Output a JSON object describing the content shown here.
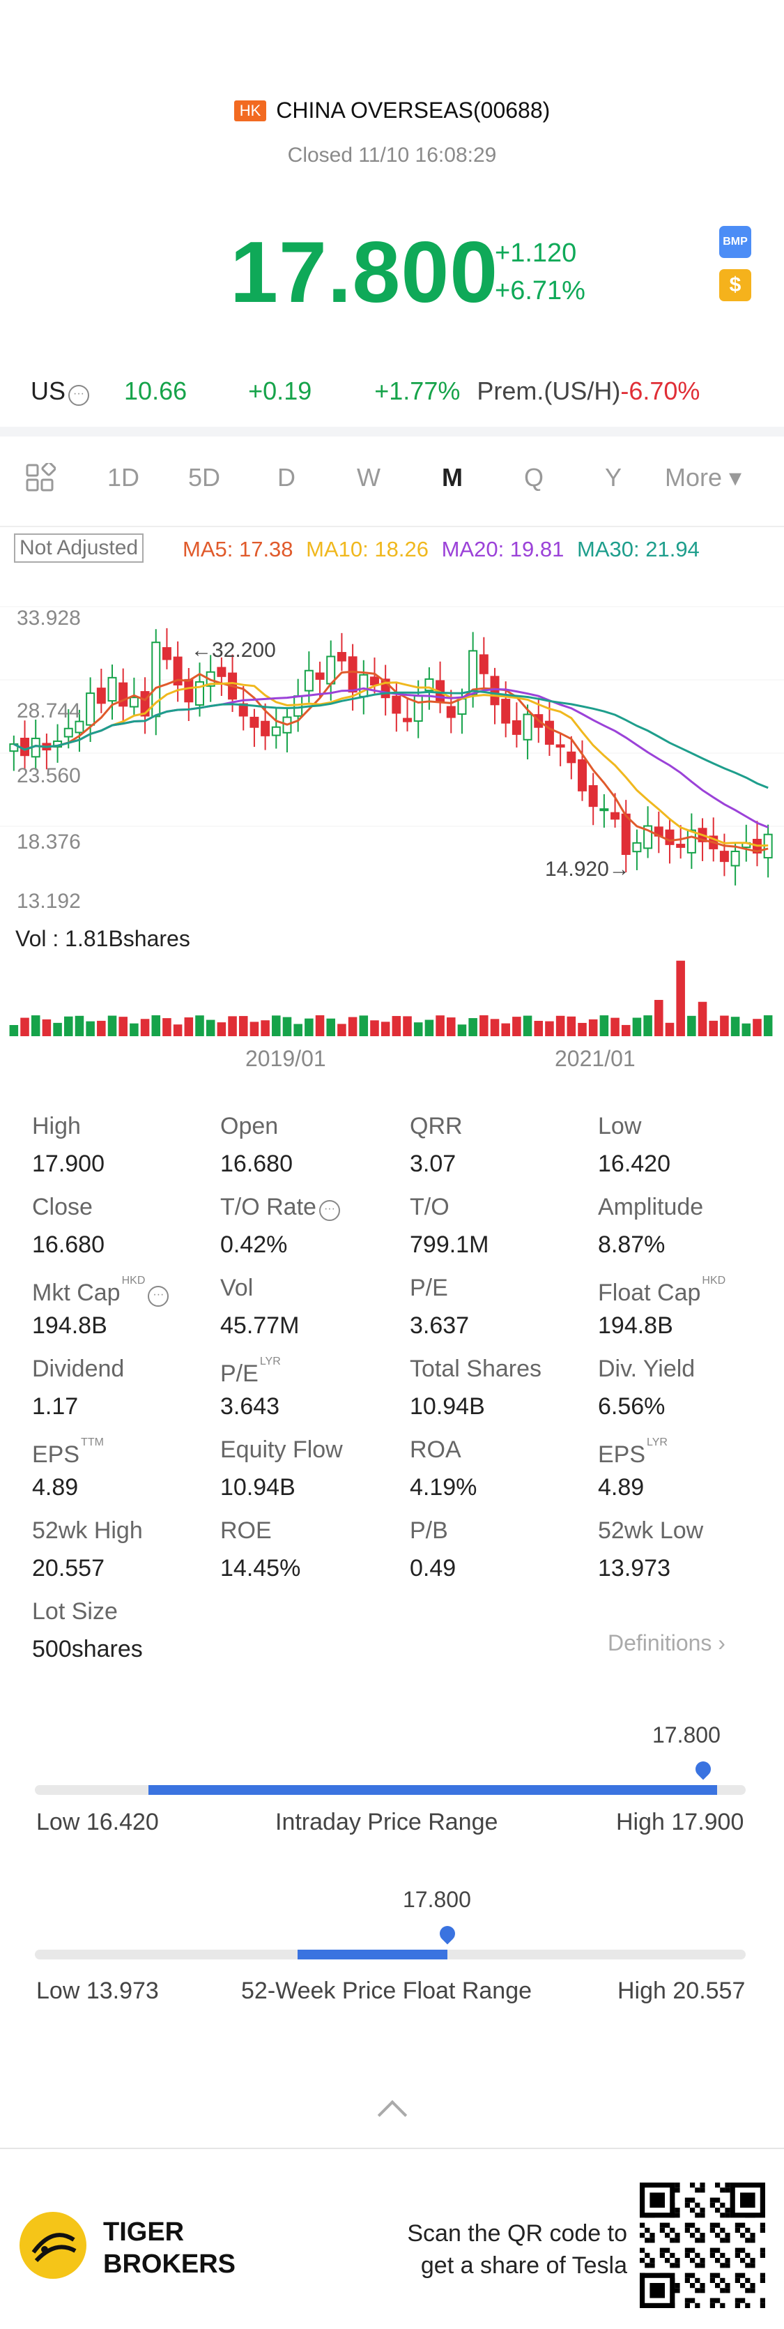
{
  "header": {
    "market_badge": "HK",
    "title": "CHINA OVERSEAS(00688)",
    "status": "Closed 11/10 16:08:29",
    "price": "17.800",
    "change": "+1.120",
    "change_pct": "+6.71%",
    "bmp_icon": "BMP",
    "dollar_icon": "$"
  },
  "us_row": {
    "label": "US",
    "price": "10.66",
    "change": "+0.19",
    "change_pct": "+1.77%",
    "premium_label": "Prem.(US/H)",
    "premium_value": "-6.70%"
  },
  "tabs": [
    "1D",
    "5D",
    "D",
    "W",
    "M",
    "Q",
    "Y",
    "More ▾"
  ],
  "active_tab": "M",
  "chart_controls": {
    "adjust_label": "Not Adjusted",
    "ma5": "MA5: 17.38",
    "ma10": "MA10: 18.26",
    "ma20": "MA20: 19.81",
    "ma30": "MA30: 21.94",
    "vol_label": "Vol  : 1.81Bshares"
  },
  "chart_data": {
    "type": "candlestick",
    "y_ticks": [
      "33.928",
      "28.744",
      "23.560",
      "18.376",
      "13.192"
    ],
    "ylim": [
      13.192,
      33.928
    ],
    "x_ticks": [
      "2019/01",
      "2021/01"
    ],
    "annotations": {
      "high": "32.200",
      "low": "14.920"
    },
    "colors": {
      "up": "#16a34a",
      "down": "#e02e36",
      "ma5": "#e05a2b",
      "ma10": "#f0b81e",
      "ma20": "#9b42d8",
      "ma30": "#1e9e8c"
    }
  },
  "stats": [
    {
      "label": "High",
      "value": "17.900"
    },
    {
      "label": "Open",
      "value": "16.680"
    },
    {
      "label": "QRR",
      "value": "3.07"
    },
    {
      "label": "Low",
      "value": "16.420"
    },
    {
      "label": "Close",
      "value": "16.680"
    },
    {
      "label": "T/O Rate",
      "value": "0.42%"
    },
    {
      "label": "T/O",
      "value": "799.1M"
    },
    {
      "label": "Amplitude",
      "value": "8.87%"
    },
    {
      "label": "Mkt Cap",
      "value": "194.8B",
      "sup": "HKD"
    },
    {
      "label": "Vol",
      "value": "45.77M"
    },
    {
      "label": "P/E",
      "value": "3.637"
    },
    {
      "label": "Float Cap",
      "value": "194.8B",
      "sup": "HKD"
    },
    {
      "label": "Dividend",
      "value": "1.17"
    },
    {
      "label": "P/E",
      "value": "3.643",
      "sup": "LYR"
    },
    {
      "label": "Total Shares",
      "value": "10.94B"
    },
    {
      "label": "Div. Yield",
      "value": "6.56%"
    },
    {
      "label": "EPS",
      "value": "4.89",
      "sup": "TTM"
    },
    {
      "label": "Equity Flow",
      "value": "10.94B"
    },
    {
      "label": "ROA",
      "value": "4.19%"
    },
    {
      "label": "EPS",
      "value": "4.89",
      "sup": "LYR"
    },
    {
      "label": "52wk High",
      "value": "20.557"
    },
    {
      "label": "ROE",
      "value": "14.45%"
    },
    {
      "label": "P/B",
      "value": "0.49"
    },
    {
      "label": "52wk Low",
      "value": "13.973"
    },
    {
      "label": "Lot Size",
      "value": "500shares"
    }
  ],
  "definitions_link": "Definitions",
  "intraday": {
    "current": "17.800",
    "low": "Low 16.420",
    "title": "Intraday Price Range",
    "high": "High 17.900",
    "fill_start": 0.16,
    "fill_end": 0.96,
    "marker": 0.94
  },
  "week52": {
    "current": "17.800",
    "low": "Low 13.973",
    "title": "52-Week Price Float Range",
    "high": "High 20.557",
    "fill_start": 0.37,
    "fill_end": 0.58,
    "marker": 0.58
  },
  "footer": {
    "brand_line1": "TIGER",
    "brand_line2": "BROKERS",
    "scan_line1": "Scan the QR code to",
    "scan_line2": "get a share of Tesla"
  }
}
